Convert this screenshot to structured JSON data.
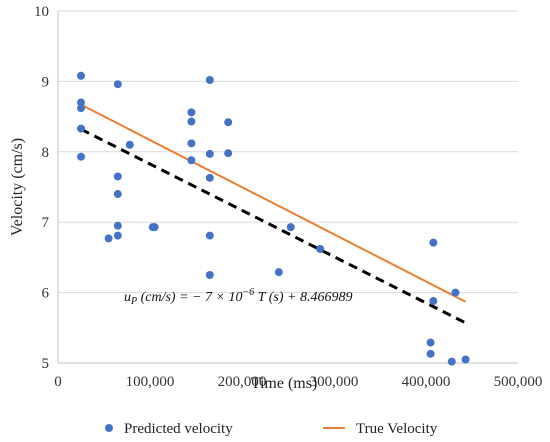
{
  "chart_data": {
    "type": "scatter",
    "xlabel": "Time (ms)",
    "ylabel": "Velocity (cm/s)",
    "xlim": [
      0,
      500000
    ],
    "ylim": [
      5,
      10
    ],
    "x_ticks": [
      0,
      100000,
      200000,
      300000,
      400000,
      500000
    ],
    "x_tick_labels": [
      "0",
      "100,000",
      "200,000",
      "300,000",
      "400,000",
      "500,000"
    ],
    "y_ticks": [
      5,
      6,
      7,
      8,
      9,
      10
    ],
    "y_tick_labels": [
      "5",
      "6",
      "7",
      "8",
      "9",
      "10"
    ],
    "grid": "horizontal",
    "legend_position": "bottom",
    "series": [
      {
        "name": "Predicted velocity",
        "kind": "scatter",
        "color": "#4472C4",
        "points": [
          [
            25000,
            9.08
          ],
          [
            25000,
            8.7
          ],
          [
            25000,
            8.62
          ],
          [
            25000,
            8.33
          ],
          [
            25000,
            7.93
          ],
          [
            55000,
            6.77
          ],
          [
            65000,
            8.96
          ],
          [
            65000,
            7.65
          ],
          [
            65000,
            7.4
          ],
          [
            65000,
            6.95
          ],
          [
            65000,
            6.81
          ],
          [
            78000,
            8.1
          ],
          [
            103000,
            6.93
          ],
          [
            105000,
            6.93
          ],
          [
            145000,
            8.56
          ],
          [
            145000,
            8.43
          ],
          [
            145000,
            8.12
          ],
          [
            145000,
            7.88
          ],
          [
            165000,
            9.02
          ],
          [
            165000,
            7.97
          ],
          [
            165000,
            7.63
          ],
          [
            165000,
            6.81
          ],
          [
            165000,
            6.25
          ],
          [
            185000,
            8.42
          ],
          [
            185000,
            7.98
          ],
          [
            240000,
            6.29
          ],
          [
            253000,
            6.93
          ],
          [
            285000,
            6.62
          ],
          [
            405000,
            5.29
          ],
          [
            405000,
            5.13
          ],
          [
            408000,
            6.71
          ],
          [
            408000,
            5.88
          ],
          [
            428000,
            5.02
          ],
          [
            432000,
            6.0
          ],
          [
            443000,
            5.05
          ]
        ]
      },
      {
        "name": "True Velocity",
        "kind": "line",
        "color": "#ED7D31",
        "points": [
          [
            25000,
            8.67
          ],
          [
            443000,
            5.87
          ]
        ]
      },
      {
        "kind": "dashed-line",
        "color": "#000000",
        "points": [
          [
            25000,
            8.32
          ],
          [
            443000,
            5.57
          ]
        ]
      }
    ],
    "annotation": {
      "x": 120000,
      "y": 5.95,
      "parts": [
        "u",
        "P",
        " (cm/s) = − 7 × 10",
        "−6",
        " T (s) + 8.466989"
      ]
    }
  }
}
